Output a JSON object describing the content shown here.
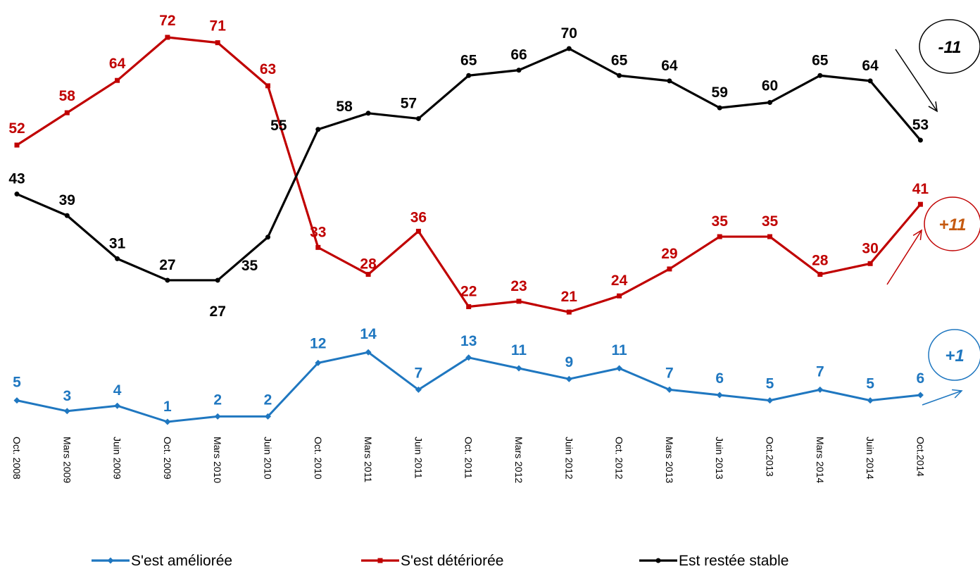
{
  "chart_data": {
    "type": "line",
    "categories": [
      "Oct. 2008",
      "Mars 2009",
      "Juin 2009",
      "Oct. 2009",
      "Mars 2010",
      "Juin 2010",
      "Oct. 2010",
      "Mars 2011",
      "Juin 2011",
      "Oct. 2011",
      "Mars 2012",
      "Juin 2012",
      "Oct. 2012",
      "Mars 2013",
      "Juin 2013",
      "Oct.2013",
      "Mars 2014",
      "Juin 2014",
      "Oct.2014"
    ],
    "series": [
      {
        "name": "S'est améliorée",
        "color": "#1f77c0",
        "marker": "diamond",
        "values": [
          5,
          3,
          4,
          1,
          2,
          2,
          12,
          14,
          7,
          13,
          11,
          9,
          11,
          7,
          6,
          5,
          7,
          5,
          6
        ],
        "change": "+1"
      },
      {
        "name": "S'est détériorée",
        "color": "#c00000",
        "marker": "square",
        "values": [
          52,
          58,
          64,
          72,
          71,
          63,
          33,
          28,
          36,
          22,
          23,
          21,
          24,
          29,
          35,
          35,
          28,
          30,
          41
        ],
        "change": "+11"
      },
      {
        "name": "Est restée stable",
        "color": "#000000",
        "marker": "circle",
        "values": [
          43,
          39,
          31,
          27,
          27,
          35,
          55,
          58,
          57,
          65,
          66,
          70,
          65,
          64,
          59,
          60,
          65,
          64,
          53
        ],
        "change": "-11"
      }
    ],
    "change_colors": {
      "+1": "#1f77c0",
      "+11": "#c55a11",
      "-11": "#000000"
    },
    "legend_position": "bottom",
    "grid": false,
    "axes_visible": false
  }
}
